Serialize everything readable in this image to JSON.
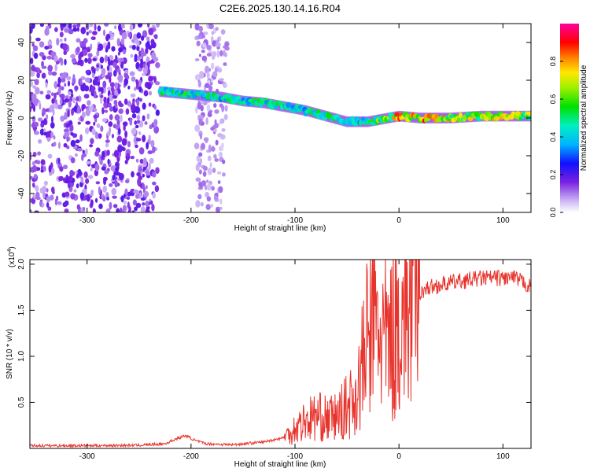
{
  "title": "C2E6.2025.130.14.16.R04",
  "colors": {
    "snr_line": "#e8332c",
    "axis": "#000000"
  },
  "chart_data": [
    {
      "type": "heatmap",
      "name": "spectrogram",
      "xlabel": "Height of straight line (km)",
      "ylabel": "Frequency (Hz)",
      "xlim": [
        -355,
        127
      ],
      "ylim": [
        -50,
        50
      ],
      "xticks": [
        -300,
        -200,
        -100,
        0,
        100
      ],
      "yticks": [
        -40,
        -20,
        0,
        20,
        40
      ],
      "colorbar": {
        "label": "Normalized spectral amplitude",
        "range": [
          0,
          1
        ],
        "ticks": [
          0.0,
          0.2,
          0.4,
          0.6,
          0.8
        ],
        "colormap": "rainbow (purple→blue→cyan→green→yellow→red→magenta)"
      },
      "ridge": {
        "description": "Doppler ridge of high amplitude",
        "x": [
          -230,
          -210,
          -190,
          -170,
          -150,
          -130,
          -110,
          -90,
          -70,
          -50,
          -30,
          -10,
          0,
          20,
          50,
          80,
          100,
          127
        ],
        "y": [
          14,
          13,
          12,
          11,
          9,
          8,
          6,
          4,
          1,
          -2,
          -2,
          0,
          1,
          0,
          0,
          1,
          1,
          1
        ],
        "amplitude": [
          0.5,
          0.55,
          0.55,
          0.5,
          0.5,
          0.55,
          0.5,
          0.5,
          0.55,
          0.45,
          0.55,
          0.7,
          0.85,
          0.85,
          0.75,
          0.7,
          0.8,
          0.7
        ]
      },
      "noise_regions": [
        {
          "x_range": [
            -355,
            -232
          ],
          "level": "high, low amplitude speckle"
        },
        {
          "x_range": [
            -195,
            -165
          ],
          "level": "moderate speckle"
        }
      ]
    },
    {
      "type": "line",
      "name": "snr",
      "xlabel": "Height of straight line (km)",
      "ylabel": "SNR (10 * v/v)",
      "multiplier": "(x10",
      "multiplier_exp": "4",
      "xlim": [
        -355,
        127
      ],
      "ylim": [
        0,
        20500
      ],
      "xticks": [
        -300,
        -200,
        -100,
        0,
        100
      ],
      "yticks": [
        5000,
        10000,
        15000,
        20000
      ],
      "ytick_labels": [
        "0.5",
        "1.0",
        "1.5",
        "2.0"
      ],
      "series": [
        {
          "color": "#e8332c",
          "x": [
            -355,
            -300,
            -250,
            -225,
            -215,
            -205,
            -195,
            -185,
            -160,
            -130,
            -110,
            -100,
            -90,
            -80,
            -70,
            -60,
            -50,
            -40,
            -35,
            -30,
            -25,
            -20,
            -15,
            -10,
            -5,
            0,
            10,
            20,
            30,
            50,
            80,
            100,
            110,
            120,
            127
          ],
          "y": [
            300,
            300,
            350,
            500,
            1000,
            1400,
            800,
            500,
            400,
            700,
            1200,
            2200,
            3000,
            3500,
            3200,
            3400,
            4500,
            6000,
            9000,
            12000,
            14000,
            13000,
            12000,
            11000,
            13000,
            14000,
            15500,
            17000,
            17500,
            18000,
            18500,
            18500,
            18500,
            18000,
            17500
          ]
        }
      ]
    }
  ]
}
